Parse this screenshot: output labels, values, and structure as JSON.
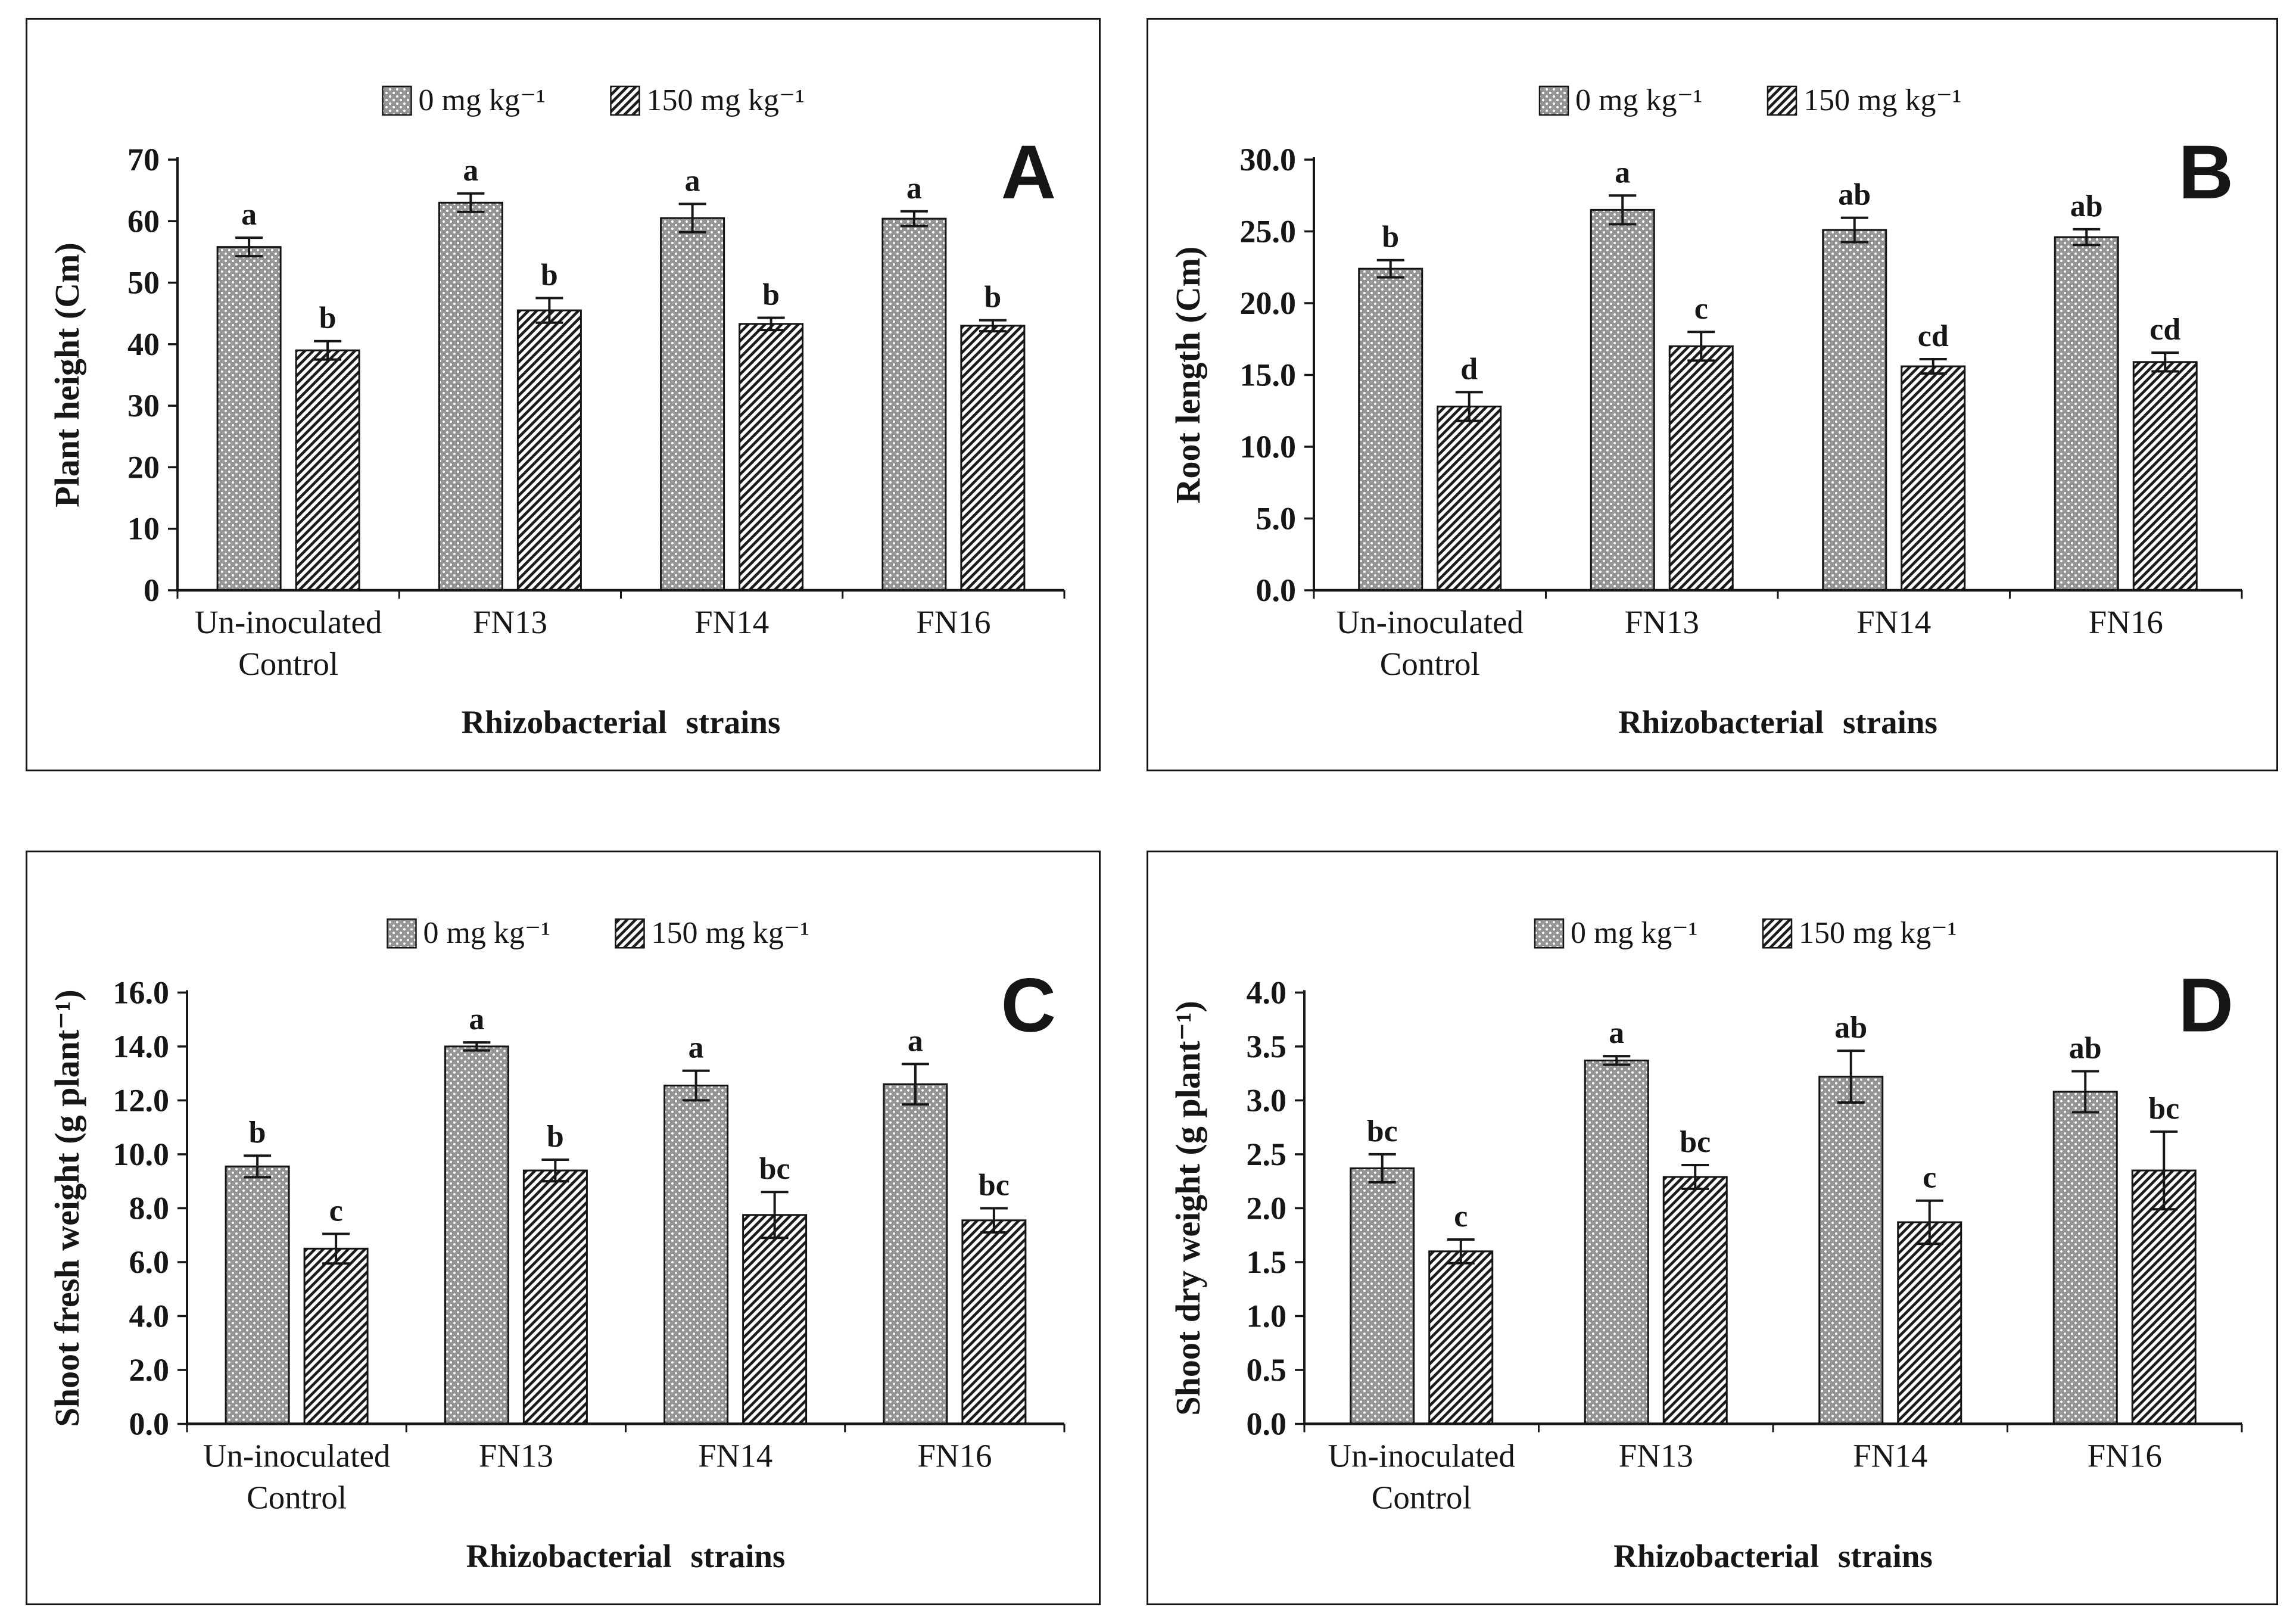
{
  "figure": {
    "x_axis_title": "Rhizobacterial strains",
    "legend_labels": [
      "0 mg kg⁻¹",
      "150 mg kg⁻¹"
    ],
    "legend_patterns": [
      "dots",
      "hatch"
    ],
    "categories_display": [
      [
        "Un-inoculated",
        "Control"
      ],
      [
        "FN13"
      ],
      [
        "FN14"
      ],
      [
        "FN16"
      ]
    ],
    "colors": {
      "ink": "#161616",
      "bar_gray": "#969696",
      "background": "#ffffff"
    }
  },
  "chart_data": [
    {
      "type": "bar",
      "panel_label": "A",
      "title": "",
      "ylabel": "Plant height (Cm)",
      "xlabel": "Rhizobacterial strains",
      "ylim": [
        0,
        70
      ],
      "ytick_step": 10,
      "ytick_decimals": 0,
      "ytick_labels": [
        "0",
        "10",
        "20",
        "30",
        "40",
        "50",
        "60",
        "70"
      ],
      "grid": "off",
      "legend_position": "top-center",
      "categories": [
        "Un-inoculated Control",
        "FN13",
        "FN14",
        "FN16"
      ],
      "series": [
        {
          "name": "0 mg kg⁻¹",
          "pattern": "dots",
          "values": [
            55.8,
            63.0,
            60.5,
            60.4
          ],
          "errors": [
            1.5,
            1.5,
            2.3,
            1.2
          ],
          "letters": [
            "a",
            "a",
            "a",
            "a"
          ]
        },
        {
          "name": "150 mg kg⁻¹",
          "pattern": "hatch",
          "values": [
            39.0,
            45.5,
            43.3,
            43.0
          ],
          "errors": [
            1.5,
            2.0,
            1.0,
            0.9
          ],
          "letters": [
            "b",
            "b",
            "b",
            "b"
          ]
        }
      ]
    },
    {
      "type": "bar",
      "panel_label": "B",
      "title": "",
      "ylabel": "Root length (Cm)",
      "xlabel": "Rhizobacterial strains",
      "ylim": [
        0,
        30
      ],
      "ytick_step": 5,
      "ytick_decimals": 1,
      "ytick_labels": [
        "0.0",
        "5.0",
        "10.0",
        "15.0",
        "20.0",
        "25.0",
        "30.0"
      ],
      "grid": "off",
      "legend_position": "top-center",
      "categories": [
        "Un-inoculated Control",
        "FN13",
        "FN14",
        "FN16"
      ],
      "series": [
        {
          "name": "0 mg kg⁻¹",
          "pattern": "dots",
          "values": [
            22.4,
            26.5,
            25.1,
            24.6
          ],
          "errors": [
            0.6,
            1.0,
            0.85,
            0.55
          ],
          "letters": [
            "b",
            "a",
            "ab",
            "ab"
          ]
        },
        {
          "name": "150 mg kg⁻¹",
          "pattern": "hatch",
          "values": [
            12.8,
            17.0,
            15.6,
            15.9
          ],
          "errors": [
            1.0,
            1.0,
            0.5,
            0.65
          ],
          "letters": [
            "d",
            "c",
            "cd",
            "cd"
          ]
        }
      ]
    },
    {
      "type": "bar",
      "panel_label": "C",
      "title": "",
      "ylabel": "Shoot fresh weight (g plant⁻¹)",
      "xlabel": "Rhizobacterial strains",
      "ylim": [
        0,
        16
      ],
      "ytick_step": 2,
      "ytick_decimals": 1,
      "ytick_labels": [
        "0.0",
        "2.0",
        "4.0",
        "6.0",
        "8.0",
        "10.0",
        "12.0",
        "14.0",
        "16.0"
      ],
      "grid": "off",
      "legend_position": "top-center",
      "categories": [
        "Un-inoculated Control",
        "FN13",
        "FN14",
        "FN16"
      ],
      "series": [
        {
          "name": "0 mg kg⁻¹",
          "pattern": "dots",
          "values": [
            9.55,
            14.0,
            12.55,
            12.6
          ],
          "errors": [
            0.4,
            0.15,
            0.55,
            0.75
          ],
          "letters": [
            "b",
            "a",
            "a",
            "a"
          ]
        },
        {
          "name": "150 mg kg⁻¹",
          "pattern": "hatch",
          "values": [
            6.5,
            9.4,
            7.75,
            7.55
          ],
          "errors": [
            0.55,
            0.4,
            0.85,
            0.45
          ],
          "letters": [
            "c",
            "b",
            "bc",
            "bc"
          ]
        }
      ]
    },
    {
      "type": "bar",
      "panel_label": "D",
      "title": "",
      "ylabel": "Shoot dry weight (g plant⁻¹)",
      "xlabel": "Rhizobacterial strains",
      "ylim": [
        0,
        4
      ],
      "ytick_step": 0.5,
      "ytick_decimals": 1,
      "ytick_labels": [
        "0.0",
        "0.5",
        "1.0",
        "1.5",
        "2.0",
        "2.5",
        "3.0",
        "3.5",
        "4.0"
      ],
      "grid": "off",
      "legend_position": "top-center",
      "categories": [
        "Un-inoculated Control",
        "FN13",
        "FN14",
        "FN16"
      ],
      "series": [
        {
          "name": "0 mg kg⁻¹",
          "pattern": "dots",
          "values": [
            2.37,
            3.37,
            3.22,
            3.08
          ],
          "errors": [
            0.13,
            0.04,
            0.24,
            0.19
          ],
          "letters": [
            "bc",
            "a",
            "ab",
            "ab"
          ]
        },
        {
          "name": "150 mg kg⁻¹",
          "pattern": "hatch",
          "values": [
            1.6,
            2.29,
            1.87,
            2.35
          ],
          "errors": [
            0.11,
            0.11,
            0.2,
            0.36
          ],
          "letters": [
            "c",
            "bc",
            "c",
            "bc"
          ]
        }
      ]
    }
  ]
}
